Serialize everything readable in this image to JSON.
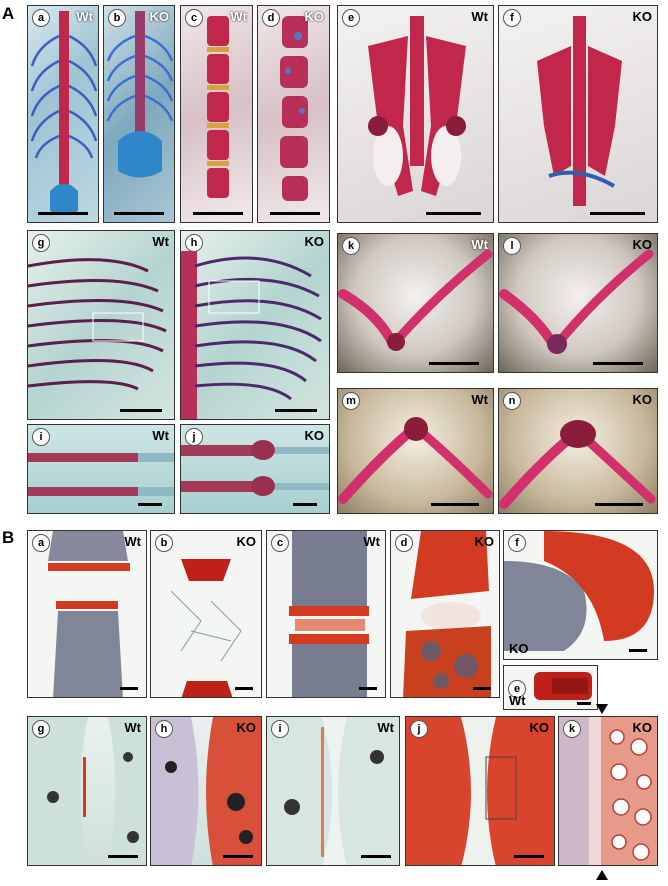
{
  "section_a": "A",
  "section_b": "B",
  "A": {
    "a": {
      "letter": "a",
      "geno": "Wt"
    },
    "b": {
      "letter": "b",
      "geno": "KO"
    },
    "c": {
      "letter": "c",
      "geno": "Wt"
    },
    "d": {
      "letter": "d",
      "geno": "KO"
    },
    "e": {
      "letter": "e",
      "geno": "Wt"
    },
    "f": {
      "letter": "f",
      "geno": "KO"
    },
    "g": {
      "letter": "g",
      "geno": "Wt"
    },
    "h": {
      "letter": "h",
      "geno": "KO"
    },
    "i": {
      "letter": "i",
      "geno": "Wt"
    },
    "j": {
      "letter": "j",
      "geno": "KO"
    },
    "k": {
      "letter": "k",
      "geno": "Wt"
    },
    "l": {
      "letter": "l",
      "geno": "KO"
    },
    "m": {
      "letter": "m",
      "geno": "Wt"
    },
    "n": {
      "letter": "n",
      "geno": "KO"
    }
  },
  "B": {
    "a": {
      "letter": "a",
      "geno": "Wt"
    },
    "b": {
      "letter": "b",
      "geno": "KO"
    },
    "c": {
      "letter": "c",
      "geno": "Wt"
    },
    "d": {
      "letter": "d",
      "geno": "KO"
    },
    "e": {
      "letter": "e",
      "geno": "Wt"
    },
    "f": {
      "letter": "f",
      "geno": "KO"
    },
    "g": {
      "letter": "g",
      "geno": "Wt"
    },
    "h": {
      "letter": "h",
      "geno": "KO"
    },
    "i": {
      "letter": "i",
      "geno": "Wt"
    },
    "j": {
      "letter": "j",
      "geno": "KO"
    },
    "k": {
      "letter": "k",
      "geno": "KO"
    }
  },
  "colors": {
    "cartilage_blue": "#2f86c9",
    "bone_red": "#c0274a",
    "safranin_red": "#d23a22",
    "trabecular_gray": "#5a5f78"
  }
}
